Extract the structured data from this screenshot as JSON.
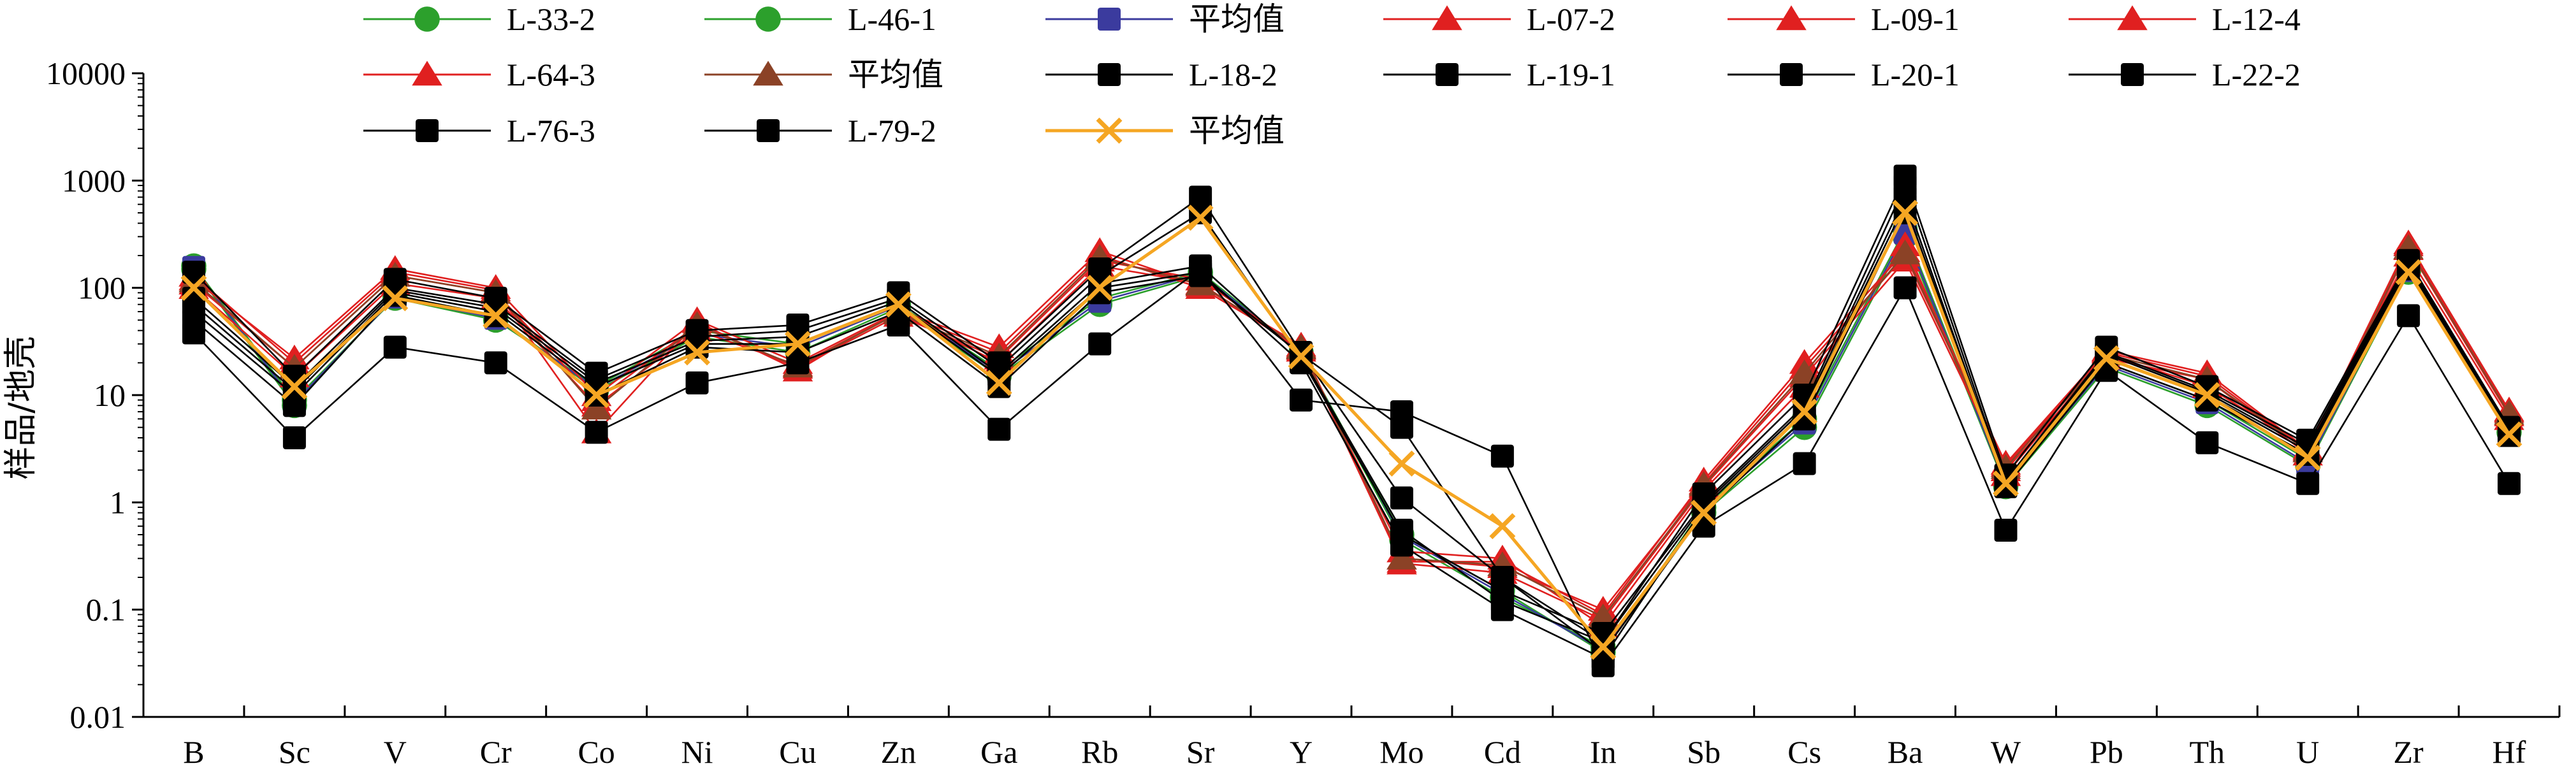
{
  "chart_data": {
    "type": "line",
    "title": "",
    "xlabel": "",
    "ylabel": "样品/地壳",
    "y_scale": "log",
    "ylim": [
      0.01,
      10000
    ],
    "y_ticks": [
      "0.01",
      "0.1",
      "1",
      "10",
      "100",
      "1000",
      "10000"
    ],
    "y_tick_values": [
      0.01,
      0.1,
      1,
      10,
      100,
      1000,
      10000
    ],
    "legend_position": "top",
    "categories": [
      "B",
      "Sc",
      "V",
      "Cr",
      "Co",
      "Ni",
      "Cu",
      "Zn",
      "Ga",
      "Rb",
      "Sr",
      "Y",
      "Mo",
      "Cd",
      "In",
      "Sb",
      "Cs",
      "Ba",
      "W",
      "Pb",
      "Th",
      "U",
      "Zr",
      "Hf"
    ],
    "series": [
      {
        "name": "L-33-2",
        "color": "#2ca02c",
        "marker": "circle",
        "values": [
          160,
          9,
          80,
          50,
          12,
          40,
          30,
          70,
          17,
          80,
          140,
          25,
          0.5,
          0.15,
          0.04,
          0.9,
          6,
          350,
          1.5,
          20,
          9,
          2.5,
          150,
          5
        ]
      },
      {
        "name": "L-46-1",
        "color": "#2ca02c",
        "marker": "circle",
        "values": [
          150,
          8,
          85,
          55,
          11,
          35,
          25,
          65,
          15,
          70,
          130,
          24,
          0.45,
          0.13,
          0.045,
          0.8,
          5,
          300,
          1.4,
          18,
          8,
          2.2,
          140,
          4.5
        ]
      },
      {
        "name": "平均值",
        "color": "#3b3b9e",
        "marker": "square",
        "values": [
          155,
          8.5,
          82,
          52,
          11.5,
          37,
          28,
          68,
          16,
          75,
          135,
          24.5,
          0.48,
          0.14,
          0.042,
          0.85,
          5.5,
          325,
          1.45,
          19,
          8.5,
          2.3,
          145,
          4.8
        ]
      },
      {
        "name": "L-07-2",
        "color": "#e02020",
        "marker": "triangle",
        "values": [
          120,
          22,
          150,
          100,
          10,
          50,
          20,
          60,
          25,
          200,
          100,
          28,
          0.3,
          0.25,
          0.1,
          1.5,
          18,
          200,
          2.2,
          25,
          15,
          3,
          250,
          7
        ]
      },
      {
        "name": "L-09-1",
        "color": "#e02020",
        "marker": "triangle",
        "values": [
          110,
          18,
          130,
          90,
          9,
          45,
          18,
          55,
          22,
          180,
          120,
          27,
          0.27,
          0.22,
          0.08,
          1.4,
          15,
          180,
          2,
          22,
          14,
          2.8,
          230,
          6.5
        ]
      },
      {
        "name": "L-12-4",
        "color": "#e02020",
        "marker": "triangle",
        "values": [
          100,
          15,
          110,
          80,
          8,
          40,
          19,
          58,
          20,
          160,
          110,
          26,
          0.35,
          0.3,
          0.07,
          1.3,
          12,
          250,
          1.8,
          24,
          12,
          3.2,
          200,
          6
        ]
      },
      {
        "name": "L-64-3",
        "color": "#e02020",
        "marker": "triangle",
        "values": [
          130,
          20,
          140,
          95,
          4.5,
          48,
          17,
          62,
          28,
          220,
          105,
          29,
          0.28,
          0.28,
          0.09,
          1.6,
          20,
          220,
          2.3,
          26,
          16,
          3.1,
          260,
          7.2
        ]
      },
      {
        "name": "平均值",
        "color": "#8b4226",
        "marker": "triangle",
        "values": [
          115,
          18,
          130,
          90,
          7.5,
          45,
          18.5,
          58,
          23,
          190,
          108,
          27.5,
          0.3,
          0.26,
          0.085,
          1.45,
          16,
          210,
          2.1,
          24,
          14,
          3,
          235,
          6.7
        ]
      },
      {
        "name": "L-18-2",
        "color": "#000000",
        "marker": "square",
        "values": [
          140,
          15,
          120,
          80,
          16,
          40,
          45,
          90,
          20,
          150,
          700,
          25,
          1.1,
          0.2,
          0.05,
          1.2,
          10,
          1100,
          1.8,
          28,
          12,
          3.8,
          180,
          5
        ]
      },
      {
        "name": "L-19-1",
        "color": "#000000",
        "marker": "square",
        "values": [
          80,
          12,
          100,
          70,
          14,
          35,
          40,
          80,
          18,
          130,
          500,
          22,
          0.5,
          0.15,
          0.06,
          1,
          8,
          900,
          1.6,
          25,
          11,
          3.5,
          170,
          4.8
        ]
      },
      {
        "name": "L-20-1",
        "color": "#000000",
        "marker": "square",
        "values": [
          60,
          10,
          90,
          60,
          12,
          30,
          30,
          70,
          15,
          100,
          140,
          20,
          0.4,
          0.1,
          0.035,
          0.9,
          7,
          600,
          1.5,
          22,
          10,
          3,
          160,
          4.5
        ]
      },
      {
        "name": "L-22-2",
        "color": "#000000",
        "marker": "square",
        "values": [
          50,
          8,
          85,
          55,
          10,
          28,
          25,
          60,
          12,
          90,
          130,
          24,
          5,
          0.2,
          0.04,
          0.8,
          6,
          500,
          1.4,
          20,
          9,
          2.8,
          150,
          4.2
        ]
      },
      {
        "name": "L-76-3",
        "color": "#000000",
        "marker": "square",
        "values": [
          38,
          4,
          28,
          20,
          4.5,
          13,
          20,
          45,
          4.8,
          30,
          150,
          9,
          7,
          2.7,
          0.03,
          0.6,
          2.3,
          100,
          0.55,
          17,
          3.6,
          1.5,
          55,
          1.5
        ]
      },
      {
        "name": "L-79-2",
        "color": "#000000",
        "marker": "square",
        "values": [
          70,
          11,
          95,
          65,
          13,
          32,
          35,
          75,
          16,
          110,
          160,
          23,
          0.55,
          0.12,
          0.05,
          0.95,
          7.5,
          700,
          1.5,
          24,
          10.5,
          3.2,
          165,
          4.6
        ]
      },
      {
        "name": "平均值",
        "color": "#f5a623",
        "marker": "x",
        "values": [
          100,
          12,
          80,
          55,
          10,
          25,
          30,
          70,
          13,
          100,
          450,
          23,
          2.3,
          0.6,
          0.045,
          0.8,
          7,
          500,
          1.5,
          22,
          10,
          2.6,
          140,
          4.3
        ]
      }
    ]
  }
}
